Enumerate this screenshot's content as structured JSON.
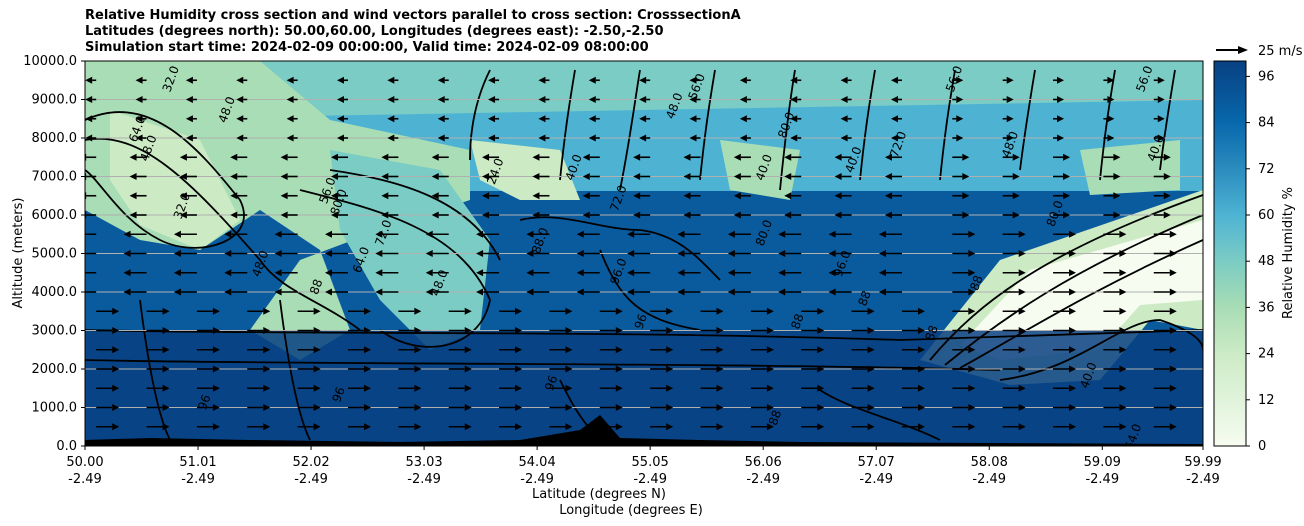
{
  "chart_data": {
    "type": "heatmap",
    "title_lines": [
      "Relative Humidity cross section and wind vectors parallel to cross section: CrosssectionA",
      "Latitudes (degrees north): 50.00,60.00, Longitudes (degrees east): -2.50,-2.50",
      "Simulation start time: 2024-02-09 00:00:00, Valid time: 2024-02-09 08:00:00"
    ],
    "ylabel": "Altitude (meters)",
    "xlabel_line1": "Latitude (degrees N)",
    "xlabel_line2": "Longitude (degrees E)",
    "ylim": [
      0,
      10000
    ],
    "y_ticks": [
      "0.0",
      "1000.0",
      "2000.0",
      "3000.0",
      "4000.0",
      "5000.0",
      "6000.0",
      "7000.0",
      "8000.0",
      "9000.0",
      "10000.0"
    ],
    "x_ticks": [
      {
        "lat": "50.00",
        "lon": "-2.49"
      },
      {
        "lat": "51.01",
        "lon": "-2.49"
      },
      {
        "lat": "52.02",
        "lon": "-2.49"
      },
      {
        "lat": "53.03",
        "lon": "-2.49"
      },
      {
        "lat": "54.04",
        "lon": "-2.49"
      },
      {
        "lat": "55.05",
        "lon": "-2.49"
      },
      {
        "lat": "56.06",
        "lon": "-2.49"
      },
      {
        "lat": "57.07",
        "lon": "-2.49"
      },
      {
        "lat": "58.08",
        "lon": "-2.49"
      },
      {
        "lat": "59.09",
        "lon": "-2.49"
      },
      {
        "lat": "59.99",
        "lon": "-2.49"
      }
    ],
    "colorbar": {
      "label": "Relative Humidity %",
      "ticks": [
        "0",
        "12",
        "24",
        "36",
        "48",
        "60",
        "72",
        "84",
        "96"
      ],
      "range": [
        0,
        100
      ]
    },
    "wind_key": {
      "label": "25 m/s"
    },
    "grid": "horizontal",
    "contour_labels": [
      {
        "text": "48.0",
        "lat": 50.6,
        "alt": 7700
      },
      {
        "text": "32.0",
        "lat": 50.8,
        "alt": 9500
      },
      {
        "text": "64.0",
        "lat": 50.5,
        "alt": 8200
      },
      {
        "text": "48.0",
        "lat": 51.3,
        "alt": 8700
      },
      {
        "text": "32.0",
        "lat": 50.9,
        "alt": 6200
      },
      {
        "text": "48.0",
        "lat": 51.6,
        "alt": 4700
      },
      {
        "text": "88",
        "lat": 52.1,
        "alt": 4100
      },
      {
        "text": "64.0",
        "lat": 52.5,
        "alt": 4800
      },
      {
        "text": "48.0",
        "lat": 53.2,
        "alt": 4200
      },
      {
        "text": "72.0",
        "lat": 52.7,
        "alt": 5500
      },
      {
        "text": "80.0",
        "lat": 52.3,
        "alt": 6300
      },
      {
        "text": "56.0",
        "lat": 52.2,
        "alt": 6600
      },
      {
        "text": "24.0",
        "lat": 53.7,
        "alt": 7100
      },
      {
        "text": "40.0",
        "lat": 54.4,
        "alt": 7200
      },
      {
        "text": "72.0",
        "lat": 54.8,
        "alt": 6400
      },
      {
        "text": "96.0",
        "lat": 54.8,
        "alt": 4500
      },
      {
        "text": "88.0",
        "lat": 54.1,
        "alt": 5300
      },
      {
        "text": "96",
        "lat": 55.0,
        "alt": 3200
      },
      {
        "text": "96",
        "lat": 54.2,
        "alt": 1600
      },
      {
        "text": "96",
        "lat": 51.1,
        "alt": 1100
      },
      {
        "text": "96",
        "lat": 52.3,
        "alt": 1300
      },
      {
        "text": "48.0",
        "lat": 55.3,
        "alt": 8800
      },
      {
        "text": "56.0",
        "lat": 55.5,
        "alt": 9300
      },
      {
        "text": "40.0",
        "lat": 56.1,
        "alt": 7200
      },
      {
        "text": "80.0",
        "lat": 56.3,
        "alt": 8300
      },
      {
        "text": "80.0",
        "lat": 56.1,
        "alt": 5500
      },
      {
        "text": "88",
        "lat": 56.4,
        "alt": 3200
      },
      {
        "text": "88",
        "lat": 57.0,
        "alt": 3800
      },
      {
        "text": "88",
        "lat": 57.6,
        "alt": 2900
      },
      {
        "text": "88",
        "lat": 58.0,
        "alt": 4200
      },
      {
        "text": "72.0",
        "lat": 57.3,
        "alt": 7800
      },
      {
        "text": "40.0",
        "lat": 56.9,
        "alt": 7400
      },
      {
        "text": "56.0",
        "lat": 57.8,
        "alt": 9500
      },
      {
        "text": "80.0",
        "lat": 58.7,
        "alt": 6000
      },
      {
        "text": "48.0",
        "lat": 58.3,
        "alt": 7800
      },
      {
        "text": "56.0",
        "lat": 59.5,
        "alt": 9500
      },
      {
        "text": "40.0",
        "lat": 59.6,
        "alt": 7700
      },
      {
        "text": "40.0",
        "lat": 59.0,
        "alt": 1800
      },
      {
        "text": "64.0",
        "lat": 59.4,
        "alt": 200
      },
      {
        "text": "96.0",
        "lat": 56.8,
        "alt": 4700
      },
      {
        "text": "88",
        "lat": 56.2,
        "alt": 700
      }
    ]
  }
}
